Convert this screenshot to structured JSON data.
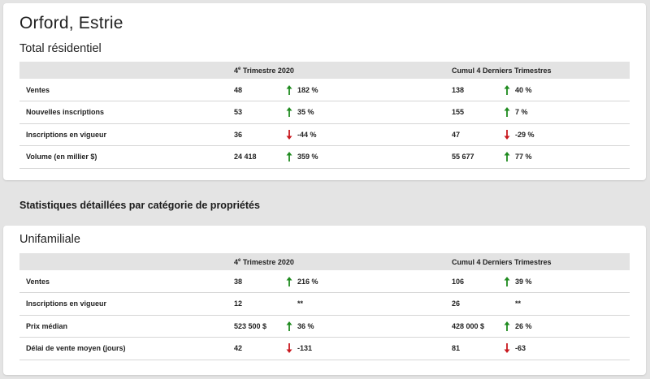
{
  "location": "Orford, Estrie",
  "section_heading": "Statistiques détaillées par catégorie de propriétés",
  "colors": {
    "up": "#1e8a1e",
    "down": "#c8181e",
    "header_bg": "#e3e3e3",
    "page_bg": "#e4e4e4"
  },
  "total": {
    "title": "Total résidentiel",
    "headers": {
      "q_prefix": "4",
      "q_sup": "e",
      "q_suffix": " Trimestre 2020",
      "cumul": "Cumul 4 Derniers Trimestres"
    },
    "rows": [
      {
        "label": "Ventes",
        "q_val": "48",
        "q_dir": "up",
        "q_pct": "182 %",
        "c_val": "138",
        "c_dir": "up",
        "c_pct": "40 %"
      },
      {
        "label": "Nouvelles inscriptions",
        "q_val": "53",
        "q_dir": "up",
        "q_pct": "35 %",
        "c_val": "155",
        "c_dir": "up",
        "c_pct": "7 %"
      },
      {
        "label": "Inscriptions en vigueur",
        "q_val": "36",
        "q_dir": "down",
        "q_pct": "-44 %",
        "c_val": "47",
        "c_dir": "down",
        "c_pct": "-29 %"
      },
      {
        "label": "Volume (en millier $)",
        "q_val": "24 418",
        "q_dir": "up",
        "q_pct": "359 %",
        "c_val": "55 677",
        "c_dir": "up",
        "c_pct": "77 %"
      }
    ]
  },
  "unifamiliale": {
    "title": "Unifamiliale",
    "headers": {
      "q_prefix": "4",
      "q_sup": "e",
      "q_suffix": " Trimestre 2020",
      "cumul": "Cumul 4 Derniers Trimestres"
    },
    "rows": [
      {
        "label": "Ventes",
        "q_val": "38",
        "q_dir": "up",
        "q_pct": "216 %",
        "c_val": "106",
        "c_dir": "up",
        "c_pct": "39 %"
      },
      {
        "label": "Inscriptions en vigueur",
        "q_val": "12",
        "q_dir": "none",
        "q_pct": "**",
        "c_val": "26",
        "c_dir": "none",
        "c_pct": "**"
      },
      {
        "label": "Prix médian",
        "q_val": "523 500 $",
        "q_dir": "up",
        "q_pct": "36 %",
        "c_val": "428 000 $",
        "c_dir": "up",
        "c_pct": "26 %"
      },
      {
        "label": "Délai de vente moyen (jours)",
        "q_val": "42",
        "q_dir": "down",
        "q_pct": "-131",
        "c_val": "81",
        "c_dir": "down",
        "c_pct": "-63"
      }
    ]
  }
}
